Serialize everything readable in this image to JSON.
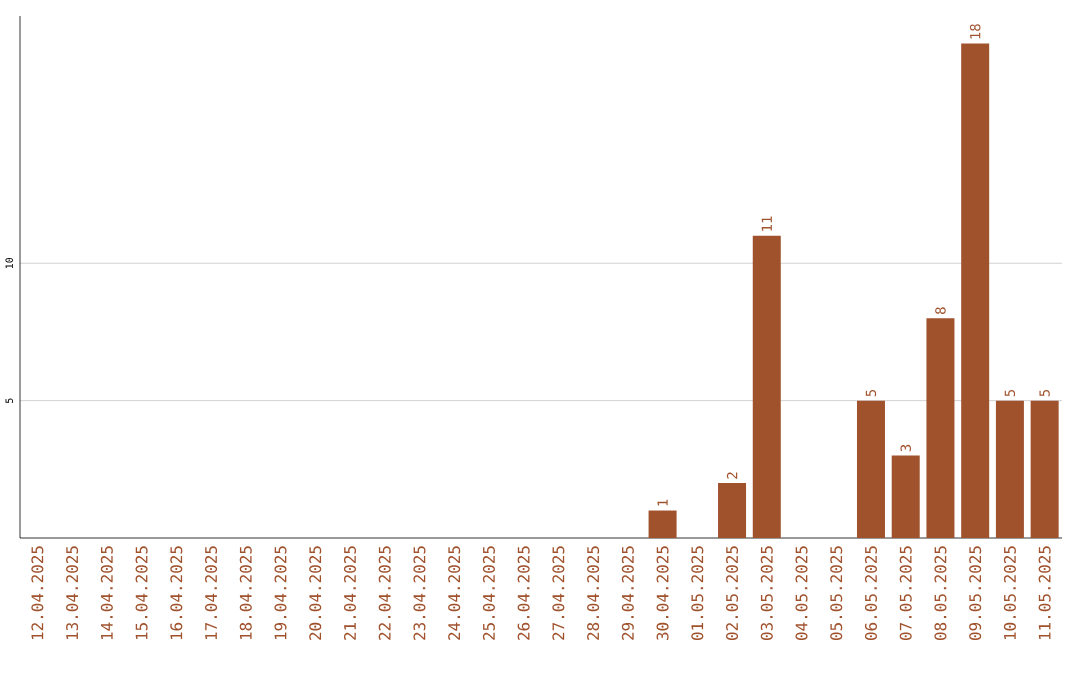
{
  "chart_data": {
    "type": "bar",
    "categories": [
      "12.04.2025",
      "13.04.2025",
      "14.04.2025",
      "15.04.2025",
      "16.04.2025",
      "17.04.2025",
      "18.04.2025",
      "19.04.2025",
      "20.04.2025",
      "21.04.2025",
      "22.04.2025",
      "23.04.2025",
      "24.04.2025",
      "25.04.2025",
      "26.04.2025",
      "27.04.2025",
      "28.04.2025",
      "29.04.2025",
      "30.04.2025",
      "01.05.2025",
      "02.05.2025",
      "03.05.2025",
      "04.05.2025",
      "05.05.2025",
      "06.05.2025",
      "07.05.2025",
      "08.05.2025",
      "09.05.2025",
      "10.05.2025",
      "11.05.2025"
    ],
    "values": [
      0,
      0,
      0,
      0,
      0,
      0,
      0,
      0,
      0,
      0,
      0,
      0,
      0,
      0,
      0,
      0,
      0,
      0,
      1,
      0,
      2,
      11,
      0,
      0,
      5,
      3,
      8,
      18,
      5,
      5
    ],
    "value_labels": [
      null,
      null,
      null,
      null,
      null,
      null,
      null,
      null,
      null,
      null,
      null,
      null,
      null,
      null,
      null,
      null,
      null,
      null,
      "1",
      null,
      "2",
      "11",
      null,
      null,
      "5",
      "3",
      "8",
      "18",
      "5",
      "5"
    ],
    "color": "#a0522d",
    "ylim": [
      0,
      19
    ],
    "yticks": [
      5,
      10
    ],
    "grid": "y"
  }
}
